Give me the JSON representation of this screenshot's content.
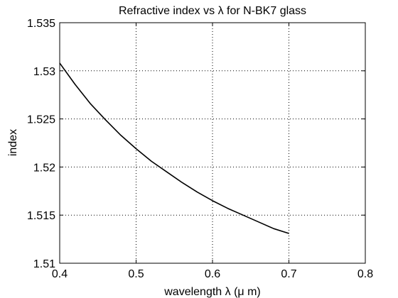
{
  "chart_data": {
    "type": "line",
    "title": "Refractive index vs λ for N-BK7 glass",
    "xlabel": "wavelength   λ (μ m)",
    "ylabel": "index",
    "xlim": [
      0.4,
      0.8
    ],
    "ylim": [
      1.51,
      1.535
    ],
    "grid": true,
    "x_ticks": [
      0.4,
      0.5,
      0.6,
      0.7,
      0.8
    ],
    "x_tick_labels": [
      "0.4",
      "0.5",
      "0.6",
      "0.7",
      "0.8"
    ],
    "y_ticks": [
      1.51,
      1.515,
      1.52,
      1.525,
      1.53,
      1.535
    ],
    "y_tick_labels": [
      "1.51",
      "1.515",
      "1.52",
      "1.525",
      "1.53",
      "1.535"
    ],
    "series": [
      {
        "color": "#000000",
        "x": [
          0.4,
          0.42,
          0.44,
          0.46,
          0.48,
          0.5,
          0.52,
          0.54,
          0.56,
          0.58,
          0.6,
          0.62,
          0.64,
          0.66,
          0.68,
          0.7
        ],
        "y": [
          1.5308,
          1.5286,
          1.5266,
          1.5249,
          1.5233,
          1.5219,
          1.5206,
          1.5195,
          1.5184,
          1.5174,
          1.5165,
          1.5157,
          1.515,
          1.5143,
          1.5136,
          1.5131
        ]
      }
    ]
  }
}
